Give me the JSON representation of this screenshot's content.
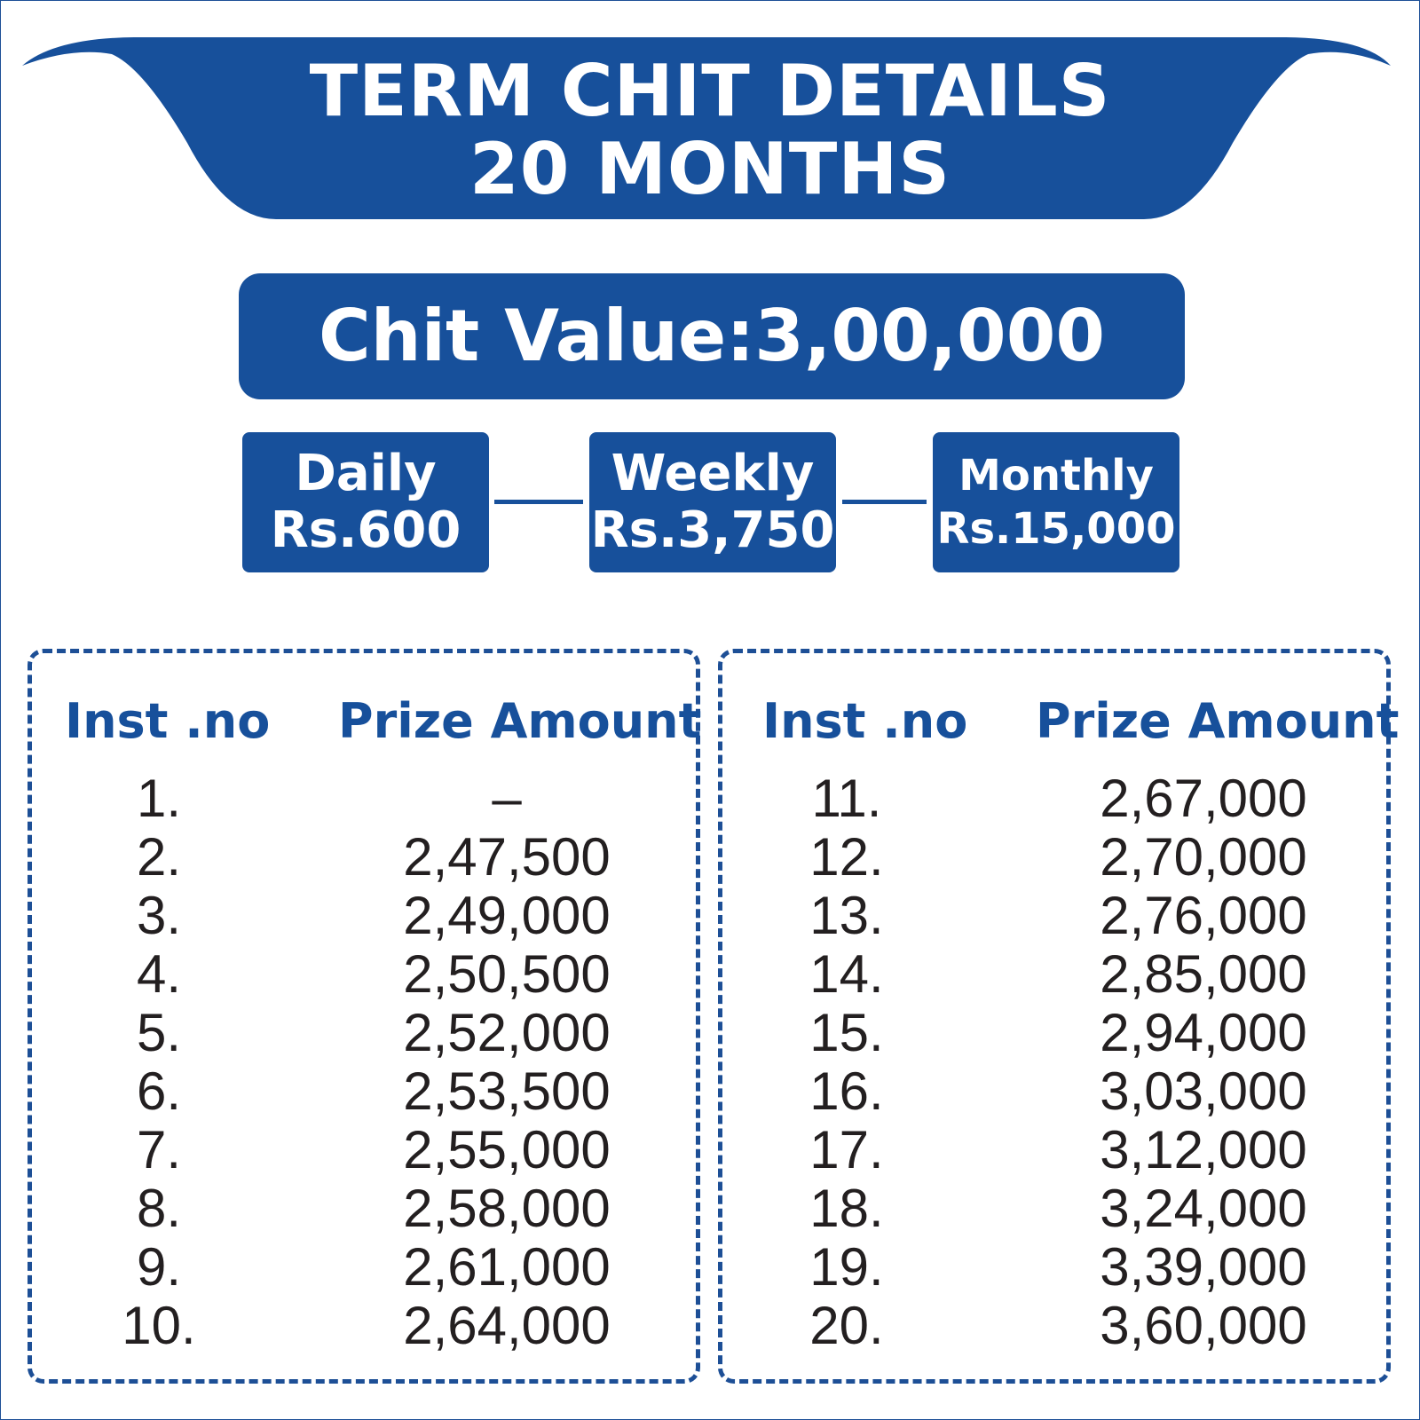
{
  "header": {
    "title_line1": "TERM CHIT DETAILS",
    "title_line2": "20 MONTHS"
  },
  "chit_value": "Chit Value:3,00,000",
  "plans": [
    {
      "label": "Daily",
      "amount": "Rs.600"
    },
    {
      "label": "Weekly",
      "amount": "Rs.3,750"
    },
    {
      "label": "Monthly",
      "amount": "Rs.15,000"
    }
  ],
  "table": {
    "col_inst": "Inst .no",
    "col_prize": "Prize Amount",
    "left_rows": [
      {
        "no": "1.",
        "amount": "–"
      },
      {
        "no": "2.",
        "amount": "2,47,500"
      },
      {
        "no": "3.",
        "amount": "2,49,000"
      },
      {
        "no": "4.",
        "amount": "2,50,500"
      },
      {
        "no": "5.",
        "amount": "2,52,000"
      },
      {
        "no": "6.",
        "amount": "2,53,500"
      },
      {
        "no": "7.",
        "amount": "2,55,000"
      },
      {
        "no": "8.",
        "amount": "2,58,000"
      },
      {
        "no": "9.",
        "amount": "2,61,000"
      },
      {
        "no": "10.",
        "amount": "2,64,000"
      }
    ],
    "right_rows": [
      {
        "no": "11.",
        "amount": "2,67,000"
      },
      {
        "no": "12.",
        "amount": "2,70,000"
      },
      {
        "no": "13.",
        "amount": "2,76,000"
      },
      {
        "no": "14.",
        "amount": "2,85,000"
      },
      {
        "no": "15.",
        "amount": "2,94,000"
      },
      {
        "no": "16.",
        "amount": "3,03,000"
      },
      {
        "no": "17.",
        "amount": "3,12,000"
      },
      {
        "no": "18.",
        "amount": "3,24,000"
      },
      {
        "no": "19.",
        "amount": "3,39,000"
      },
      {
        "no": "20.",
        "amount": "3,60,000"
      }
    ]
  },
  "colors": {
    "brand_blue": "#17509b",
    "text_dark": "#231f20"
  }
}
